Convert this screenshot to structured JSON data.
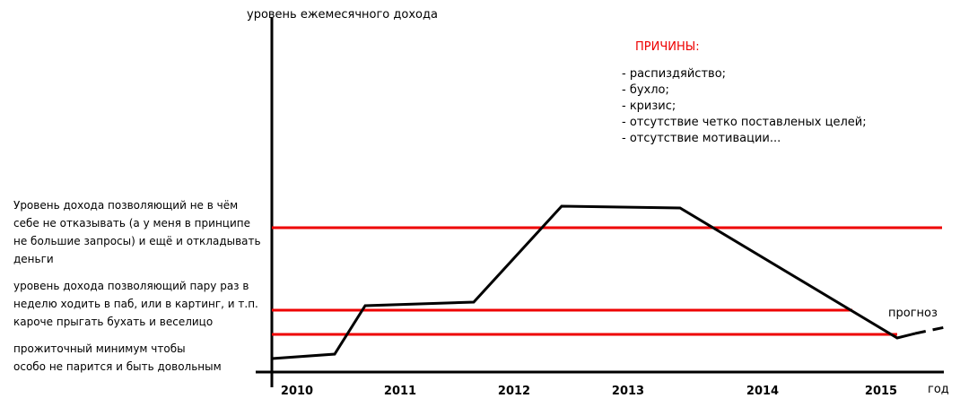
{
  "chart_data": {
    "type": "line",
    "ylabel": "уровень ежемесячного дохода",
    "xlabel": "год",
    "categories": [
      "2010",
      "2011",
      "2012",
      "2013",
      "2014",
      "2015"
    ],
    "forecast_label": "прогноз",
    "levels": [
      [
        "Уровень дохода позволяющий не в чём",
        "себе не отказывать (а у меня в принципе",
        "не большие запросы) и ещё и откладывать",
        "деньги"
      ],
      [
        "уровень дохода позволяющий пару раз в",
        "неделю ходить в паб, или в картинг, и т.п.",
        "кароче прыгать бухать и веселицо"
      ],
      [
        "прожиточный минимум чтобы",
        "особо не парится и быть довольным"
      ]
    ],
    "reasons": {
      "title": "ПРИЧИНЫ:",
      "items": [
        "- распиздяйство;",
        "- бухло;",
        "- кризис;",
        "- отсутствие четко поставленых целей;",
        "- отсутствие мотивации..."
      ]
    }
  }
}
